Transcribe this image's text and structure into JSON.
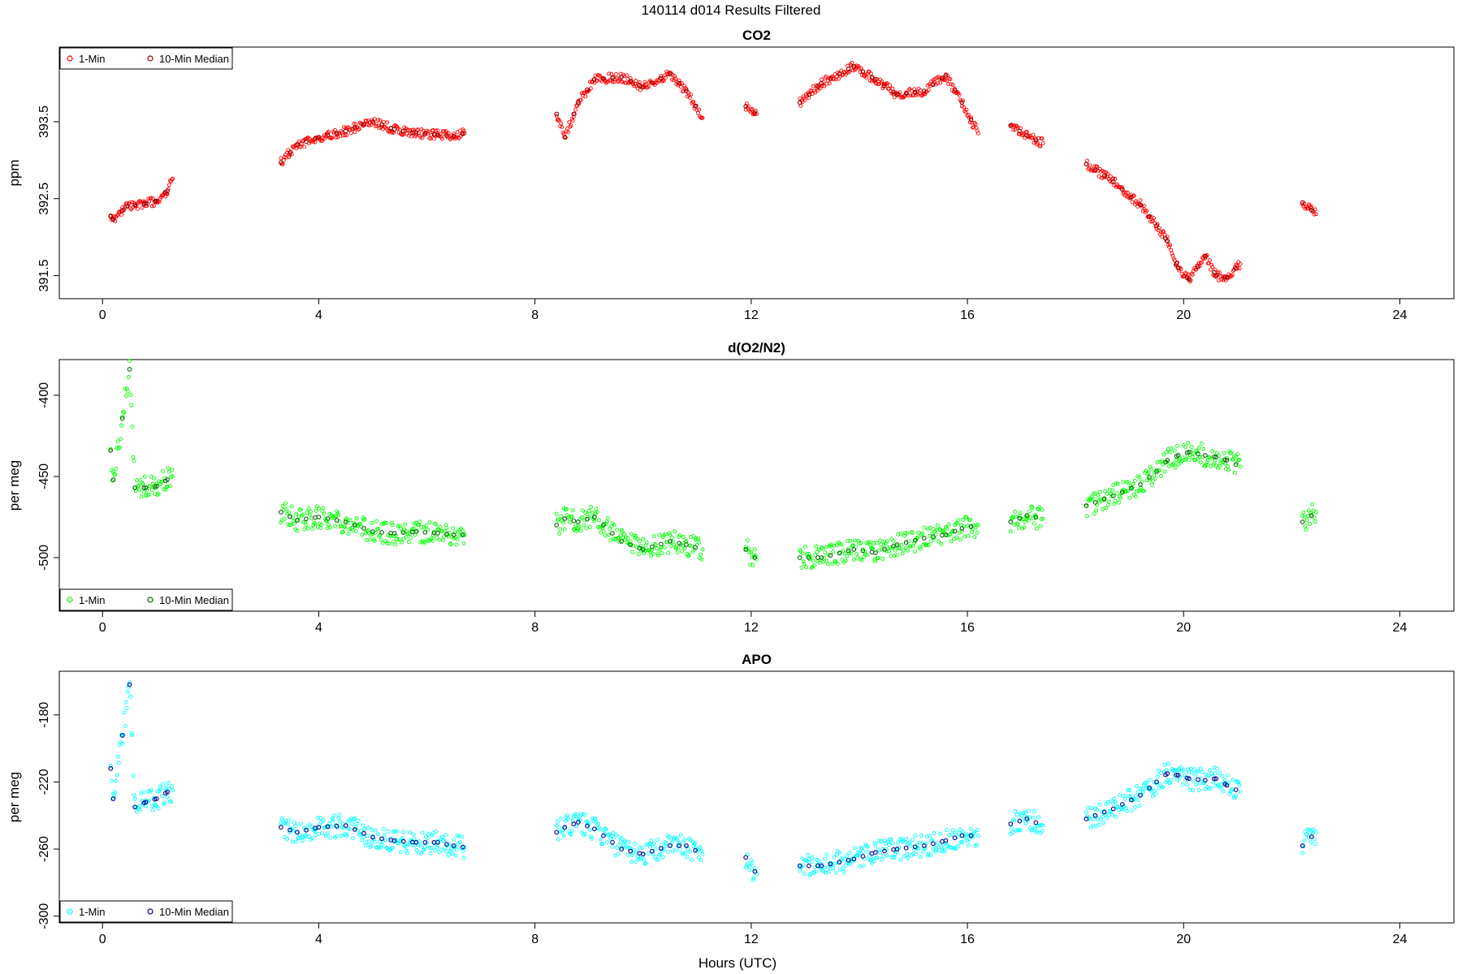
{
  "page": {
    "title": "140114   d014   Results Filtered"
  },
  "shared": {
    "xlabel": "Hours (UTC)",
    "legend_labels": [
      "1-Min",
      "10-Min Median"
    ]
  },
  "chart_data": [
    {
      "type": "scatter",
      "title": "CO2",
      "ylabel": "ppm",
      "xlim": [
        -0.8,
        25
      ],
      "ylim": [
        391.2,
        394.47
      ],
      "xticks": [
        "0",
        "4",
        "8",
        "12",
        "16",
        "20",
        "24"
      ],
      "yticks": [
        "391.5",
        "392.5",
        "393.5"
      ],
      "legend_position": "top-left",
      "colors": {
        "one_min": "#ff0000",
        "median": "#8b0000"
      },
      "segments": [
        [
          [
            0.15,
            392.27
          ],
          [
            0.2,
            392.23
          ],
          [
            0.45,
            392.4
          ],
          [
            0.6,
            392.42
          ],
          [
            0.8,
            392.44
          ],
          [
            1.0,
            392.47
          ],
          [
            1.2,
            392.6
          ],
          [
            1.3,
            392.76
          ]
        ],
        [
          [
            3.3,
            392.97
          ],
          [
            3.6,
            393.2
          ],
          [
            4.0,
            393.3
          ],
          [
            4.5,
            393.38
          ],
          [
            5.0,
            393.5
          ],
          [
            5.4,
            393.4
          ],
          [
            5.8,
            393.35
          ],
          [
            6.2,
            393.33
          ],
          [
            6.5,
            393.31
          ],
          [
            6.7,
            393.35
          ]
        ],
        [
          [
            8.4,
            393.6
          ],
          [
            8.55,
            393.3
          ],
          [
            8.8,
            393.75
          ],
          [
            9.1,
            394.05
          ],
          [
            9.6,
            394.08
          ],
          [
            10.0,
            393.95
          ],
          [
            10.5,
            394.12
          ],
          [
            10.8,
            393.9
          ],
          [
            11.1,
            393.55
          ]
        ],
        [
          [
            11.9,
            393.7
          ],
          [
            12.1,
            393.6
          ]
        ],
        [
          [
            12.9,
            393.75
          ],
          [
            13.3,
            394.0
          ],
          [
            13.9,
            394.22
          ],
          [
            14.3,
            394.05
          ],
          [
            14.7,
            393.85
          ],
          [
            15.2,
            393.9
          ],
          [
            15.6,
            394.1
          ],
          [
            15.9,
            393.75
          ],
          [
            16.2,
            393.35
          ]
        ],
        [
          [
            16.8,
            393.45
          ],
          [
            17.1,
            393.32
          ],
          [
            17.4,
            393.22
          ]
        ],
        [
          [
            18.2,
            392.95
          ],
          [
            18.7,
            392.72
          ],
          [
            19.2,
            392.42
          ],
          [
            19.5,
            392.15
          ],
          [
            19.7,
            391.95
          ],
          [
            19.9,
            391.6
          ],
          [
            20.1,
            391.45
          ],
          [
            20.4,
            391.75
          ],
          [
            20.6,
            391.5
          ],
          [
            20.8,
            391.48
          ],
          [
            21.05,
            391.65
          ]
        ],
        [
          [
            22.2,
            392.45
          ],
          [
            22.45,
            392.3
          ]
        ]
      ]
    },
    {
      "type": "scatter",
      "title": "d(O2/N2)",
      "ylabel": "per meg",
      "xlim": [
        -0.8,
        25
      ],
      "ylim": [
        -533,
        -378
      ],
      "xticks": [
        "0",
        "4",
        "8",
        "12",
        "16",
        "20",
        "24"
      ],
      "yticks": [
        "-500",
        "-450",
        "-400"
      ],
      "legend_position": "bottom-left",
      "colors": {
        "one_min": "#00ff00",
        "median": "#006400"
      },
      "segments": [
        [
          [
            0.15,
            -434
          ],
          [
            0.2,
            -452
          ],
          [
            0.5,
            -384
          ],
          [
            0.6,
            -457
          ],
          [
            0.8,
            -457
          ],
          [
            1.0,
            -456
          ],
          [
            1.2,
            -452
          ],
          [
            1.3,
            -450
          ]
        ],
        [
          [
            3.3,
            -472
          ],
          [
            3.6,
            -477
          ],
          [
            4.0,
            -475
          ],
          [
            4.5,
            -478
          ],
          [
            5.0,
            -484
          ],
          [
            5.4,
            -485
          ],
          [
            5.8,
            -484
          ],
          [
            6.2,
            -485
          ],
          [
            6.5,
            -486
          ],
          [
            6.7,
            -486
          ]
        ],
        [
          [
            8.4,
            -480
          ],
          [
            8.55,
            -476
          ],
          [
            8.8,
            -478
          ],
          [
            9.1,
            -475
          ],
          [
            9.6,
            -490
          ],
          [
            10.0,
            -495
          ],
          [
            10.5,
            -490
          ],
          [
            10.8,
            -492
          ],
          [
            11.1,
            -495
          ]
        ],
        [
          [
            11.9,
            -495
          ],
          [
            12.1,
            -501
          ]
        ],
        [
          [
            12.9,
            -500
          ],
          [
            13.3,
            -500
          ],
          [
            13.9,
            -495
          ],
          [
            14.3,
            -497
          ],
          [
            14.7,
            -492
          ],
          [
            15.2,
            -488
          ],
          [
            15.6,
            -486
          ],
          [
            15.9,
            -482
          ],
          [
            16.2,
            -480
          ]
        ],
        [
          [
            16.8,
            -478
          ],
          [
            17.1,
            -474
          ],
          [
            17.4,
            -476
          ]
        ],
        [
          [
            18.2,
            -468
          ],
          [
            18.7,
            -462
          ],
          [
            19.2,
            -455
          ],
          [
            19.5,
            -447
          ],
          [
            19.7,
            -440
          ],
          [
            19.9,
            -437
          ],
          [
            20.1,
            -435
          ],
          [
            20.4,
            -437
          ],
          [
            20.6,
            -438
          ],
          [
            20.8,
            -440
          ],
          [
            21.05,
            -444
          ]
        ],
        [
          [
            22.2,
            -478
          ],
          [
            22.45,
            -472
          ]
        ]
      ]
    },
    {
      "type": "scatter",
      "title": "APO",
      "ylabel": "per meg",
      "xlim": [
        -0.8,
        25
      ],
      "ylim": [
        -304,
        -154
      ],
      "xticks": [
        "0",
        "4",
        "8",
        "12",
        "16",
        "20",
        "24"
      ],
      "yticks": [
        "-300",
        "-260",
        "-220",
        "-180"
      ],
      "legend_position": "bottom-left",
      "colors": {
        "one_min": "#00ffff",
        "median": "#00008b"
      },
      "segments": [
        [
          [
            0.15,
            -212
          ],
          [
            0.2,
            -230
          ],
          [
            0.5,
            -162
          ],
          [
            0.6,
            -235
          ],
          [
            0.8,
            -232
          ],
          [
            1.0,
            -230
          ],
          [
            1.2,
            -226
          ],
          [
            1.3,
            -225
          ]
        ],
        [
          [
            3.3,
            -247
          ],
          [
            3.6,
            -250
          ],
          [
            4.0,
            -247
          ],
          [
            4.5,
            -246
          ],
          [
            5.0,
            -253
          ],
          [
            5.4,
            -255
          ],
          [
            5.8,
            -256
          ],
          [
            6.2,
            -256
          ],
          [
            6.5,
            -258
          ],
          [
            6.7,
            -259
          ]
        ],
        [
          [
            8.4,
            -250
          ],
          [
            8.55,
            -247
          ],
          [
            8.8,
            -244
          ],
          [
            9.1,
            -248
          ],
          [
            9.6,
            -260
          ],
          [
            10.0,
            -263
          ],
          [
            10.5,
            -258
          ],
          [
            10.8,
            -258
          ],
          [
            11.1,
            -263
          ]
        ],
        [
          [
            11.9,
            -265
          ],
          [
            12.1,
            -275
          ]
        ],
        [
          [
            12.9,
            -270
          ],
          [
            13.3,
            -270
          ],
          [
            13.9,
            -266
          ],
          [
            14.3,
            -262
          ],
          [
            14.7,
            -260
          ],
          [
            15.2,
            -258
          ],
          [
            15.6,
            -255
          ],
          [
            15.9,
            -252
          ],
          [
            16.2,
            -252
          ]
        ],
        [
          [
            16.8,
            -245
          ],
          [
            17.1,
            -242
          ],
          [
            17.4,
            -246
          ]
        ],
        [
          [
            18.2,
            -242
          ],
          [
            18.7,
            -236
          ],
          [
            19.2,
            -228
          ],
          [
            19.5,
            -220
          ],
          [
            19.7,
            -215
          ],
          [
            19.9,
            -216
          ],
          [
            20.1,
            -218
          ],
          [
            20.4,
            -219
          ],
          [
            20.6,
            -218
          ],
          [
            20.8,
            -222
          ],
          [
            21.05,
            -226
          ]
        ],
        [
          [
            22.2,
            -258
          ],
          [
            22.45,
            -250
          ]
        ]
      ]
    }
  ]
}
